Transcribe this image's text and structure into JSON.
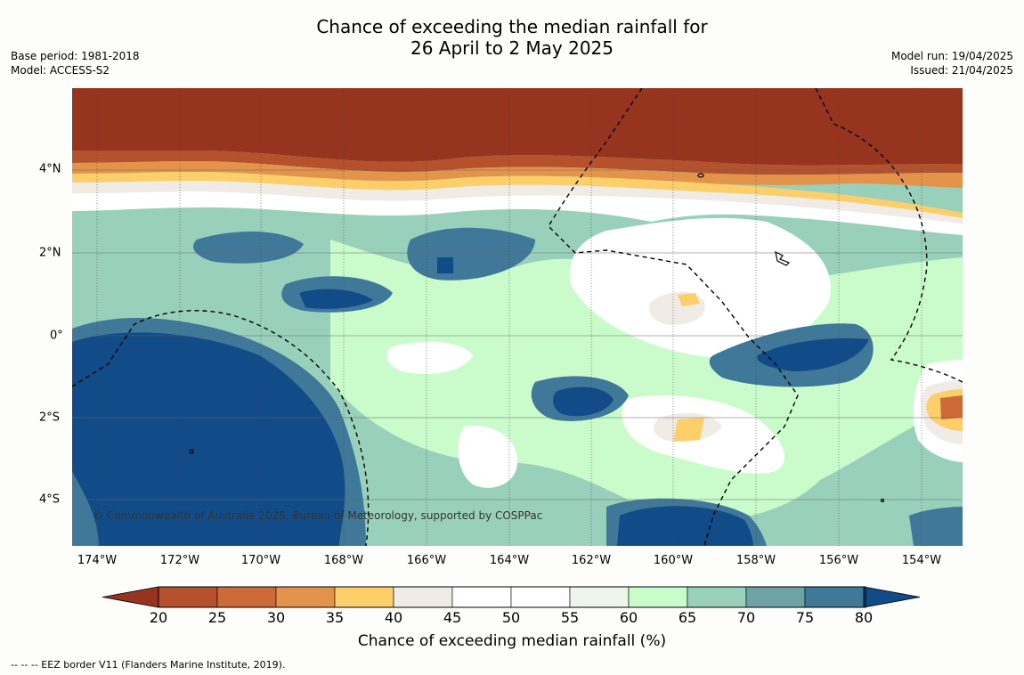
{
  "title_line1": "Chance of exceeding the median rainfall for",
  "title_line2": "26 April to 2 May 2025",
  "base_period": "Base period: 1981-2018",
  "model": "Model: ACCESS-S2",
  "model_run": "Model run: 19/04/2025",
  "issued": "Issued: 21/04/2025",
  "lat_labels": [
    "4°N",
    "2°N",
    "0°",
    "2°S",
    "4°S"
  ],
  "lon_labels": [
    "174°W",
    "172°W",
    "170°W",
    "168°W",
    "166°W",
    "164°W",
    "162°W",
    "160°W",
    "158°W",
    "156°W",
    "154°W"
  ],
  "colorbar_ticks": [
    "20",
    "25",
    "30",
    "35",
    "40",
    "45",
    "50",
    "55",
    "60",
    "65",
    "70",
    "75",
    "80"
  ],
  "colorbar_title": "Chance of exceeding median rainfall (%)",
  "colorbar_colors": [
    "#97341f",
    "#b5512c",
    "#cc6a38",
    "#e3944a",
    "#fdcf6b",
    "#f1ebe6",
    "#ffffff",
    "#ffffff",
    "#edf6ea",
    "#cafccb",
    "#99d0bb",
    "#6ea2a5",
    "#3f7898",
    "#124c88"
  ],
  "copyright": "© Commonwealth of Australia 2025, Bureau of Meteorology, supported by COSPPac",
  "eez_note": "--  --  -- EEZ border V11 (Flanders Marine Institute, 2019)."
}
